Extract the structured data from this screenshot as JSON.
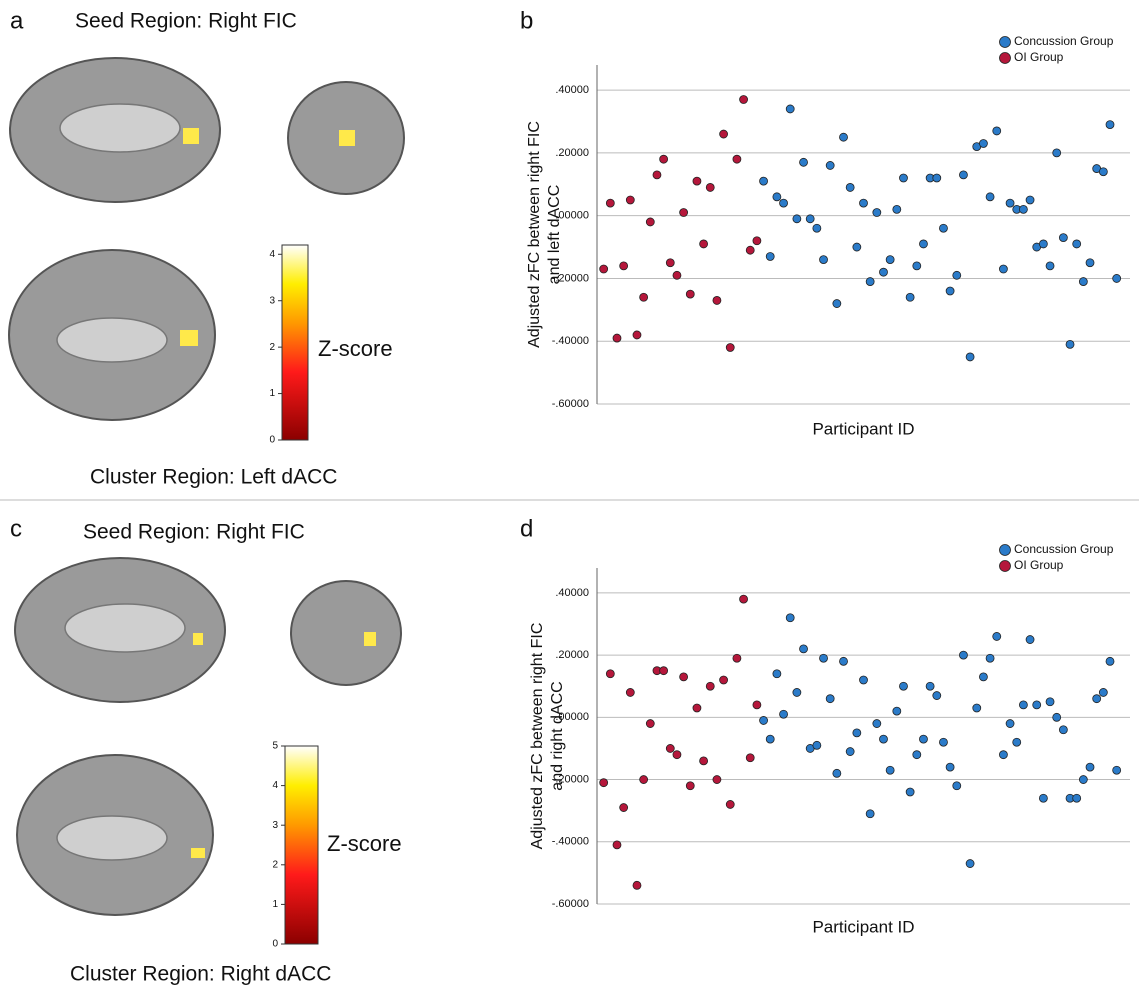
{
  "brain_panels": [
    {
      "letter": "a",
      "seed_label": "Seed Region: Right FIC",
      "cluster_label": "Cluster Region: Left dACC",
      "colorbar": {
        "label": "Z-score",
        "lim": [
          0,
          4.2
        ],
        "ticks": [
          0,
          1,
          2,
          3,
          4
        ]
      }
    },
    {
      "letter": "c",
      "seed_label": "Seed Region: Right FIC",
      "cluster_label": "Cluster Region: Right dACC",
      "colorbar": {
        "label": "Z-score",
        "lim": [
          0,
          5
        ],
        "ticks": [
          0,
          1,
          2,
          3,
          4,
          5
        ]
      }
    }
  ],
  "chart_data": [
    {
      "type": "scatter",
      "letter": "b",
      "xlabel": "Participant ID",
      "ylabel": [
        "Adjusted zFC between right FIC",
        "and left dACC"
      ],
      "xlim": [
        0,
        80
      ],
      "ylim": [
        -0.6,
        0.48
      ],
      "yticks": [
        {
          "value": -0.6,
          "label": "-.60000"
        },
        {
          "value": -0.4,
          "label": "-.40000"
        },
        {
          "value": -0.2,
          "label": "-.20000"
        },
        {
          "value": 0,
          "label": ".00000"
        },
        {
          "value": 0.2,
          "label": ".20000"
        },
        {
          "value": 0.4,
          "label": ".40000"
        }
      ],
      "grid": true,
      "legend": "upper right",
      "series": [
        {
          "name": "Concussion Group",
          "color": "#2b7bc9",
          "x": [
            25,
            26,
            27,
            28,
            29,
            30,
            31,
            32,
            33,
            34,
            35,
            36,
            37,
            38,
            39,
            40,
            41,
            42,
            43,
            44,
            45,
            46,
            47,
            48,
            49,
            50,
            51,
            52,
            53,
            54,
            55,
            56,
            57,
            58,
            59,
            60,
            61,
            62,
            63,
            64,
            65,
            66,
            67,
            68,
            69,
            70,
            71,
            72,
            73,
            74,
            75,
            76,
            77,
            78
          ],
          "values": [
            0.11,
            -0.13,
            0.06,
            0.04,
            0.34,
            -0.01,
            0.17,
            -0.01,
            -0.04,
            -0.14,
            0.16,
            -0.28,
            0.25,
            0.09,
            -0.1,
            0.04,
            -0.21,
            0.01,
            -0.18,
            -0.14,
            0.02,
            0.12,
            -0.26,
            -0.16,
            -0.09,
            0.12,
            0.12,
            -0.04,
            -0.24,
            -0.19,
            0.13,
            -0.45,
            0.22,
            0.23,
            0.06,
            0.27,
            -0.17,
            0.04,
            0.02,
            0.02,
            0.05,
            -0.1,
            -0.09,
            -0.16,
            0.2,
            -0.07,
            -0.41,
            -0.09,
            -0.21,
            -0.15,
            0.15,
            0.14,
            0.29,
            -0.2
          ]
        },
        {
          "name": "OI Group",
          "color": "#b5173b",
          "x": [
            1,
            2,
            3,
            4,
            5,
            6,
            7,
            8,
            9,
            10,
            11,
            12,
            13,
            14,
            15,
            16,
            17,
            18,
            19,
            20,
            21,
            22,
            23,
            24
          ],
          "values": [
            -0.17,
            0.04,
            -0.39,
            -0.16,
            0.05,
            -0.38,
            -0.26,
            -0.02,
            0.13,
            0.18,
            -0.15,
            -0.19,
            0.01,
            -0.25,
            0.11,
            -0.09,
            0.09,
            -0.27,
            0.26,
            -0.42,
            0.18,
            0.37,
            -0.11,
            -0.08
          ]
        }
      ]
    },
    {
      "type": "scatter",
      "letter": "d",
      "xlabel": "Participant ID",
      "ylabel": [
        "Adjusted zFC between right FIC",
        "and right dACC"
      ],
      "xlim": [
        0,
        80
      ],
      "ylim": [
        -0.6,
        0.48
      ],
      "yticks": [
        {
          "value": -0.6,
          "label": "-.60000"
        },
        {
          "value": -0.4,
          "label": "-.40000"
        },
        {
          "value": -0.2,
          "label": "-.20000"
        },
        {
          "value": 0,
          "label": ".00000"
        },
        {
          "value": 0.2,
          "label": ".20000"
        },
        {
          "value": 0.4,
          "label": ".40000"
        }
      ],
      "grid": true,
      "legend": "upper right",
      "series": [
        {
          "name": "Concussion Group",
          "color": "#2b7bc9",
          "x": [
            25,
            26,
            27,
            28,
            29,
            30,
            31,
            32,
            33,
            34,
            35,
            36,
            37,
            38,
            39,
            40,
            41,
            42,
            43,
            44,
            45,
            46,
            47,
            48,
            49,
            50,
            51,
            52,
            53,
            54,
            55,
            56,
            57,
            58,
            59,
            60,
            61,
            62,
            63,
            64,
            65,
            66,
            67,
            68,
            69,
            70,
            71,
            72,
            73,
            74,
            75,
            76,
            77,
            78
          ],
          "values": [
            -0.01,
            -0.07,
            0.14,
            0.01,
            0.32,
            0.08,
            0.22,
            -0.1,
            -0.09,
            0.19,
            0.06,
            -0.18,
            0.18,
            -0.11,
            -0.05,
            0.12,
            -0.31,
            -0.02,
            -0.07,
            -0.17,
            0.02,
            0.1,
            -0.24,
            -0.12,
            -0.07,
            0.1,
            0.07,
            -0.08,
            -0.16,
            -0.22,
            0.2,
            -0.47,
            0.03,
            0.13,
            0.19,
            0.26,
            -0.12,
            -0.02,
            -0.08,
            0.04,
            0.25,
            0.04,
            -0.26,
            0.05,
            0,
            -0.04,
            -0.26,
            -0.26,
            -0.2,
            -0.16,
            0.06,
            0.08,
            0.18,
            -0.17
          ]
        },
        {
          "name": "OI Group",
          "color": "#b5173b",
          "x": [
            1,
            2,
            3,
            4,
            5,
            6,
            7,
            8,
            9,
            10,
            11,
            12,
            13,
            14,
            15,
            16,
            17,
            18,
            19,
            20,
            21,
            22,
            23,
            24
          ],
          "values": [
            -0.21,
            0.14,
            -0.41,
            -0.29,
            0.08,
            -0.54,
            -0.2,
            -0.02,
            0.15,
            0.15,
            -0.1,
            -0.12,
            0.13,
            -0.22,
            0.03,
            -0.14,
            0.1,
            -0.2,
            0.12,
            -0.28,
            0.19,
            0.38,
            -0.13,
            0.04
          ]
        }
      ]
    }
  ]
}
